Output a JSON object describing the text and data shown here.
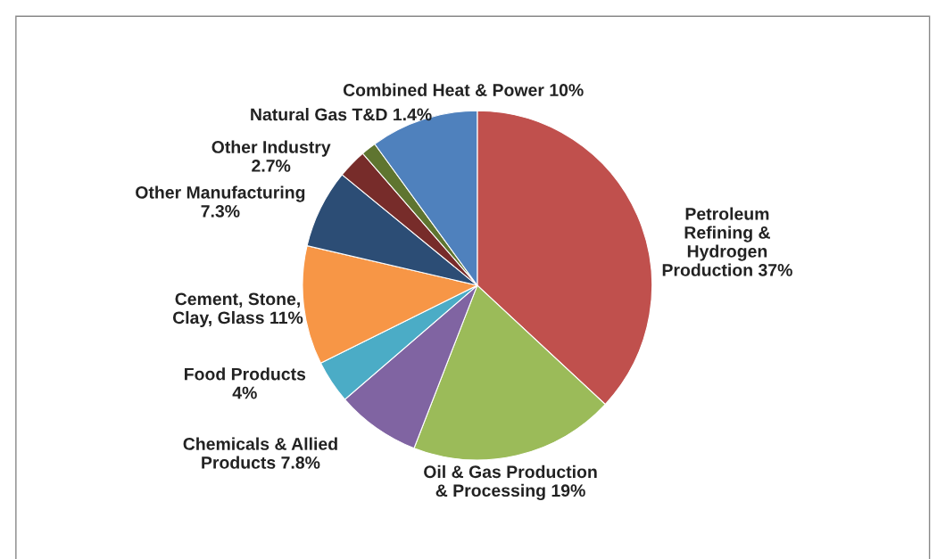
{
  "chart_data": {
    "type": "pie",
    "categories": [
      "Petroleum\nRefining &\nHydrogen\nProduction",
      "Oil & Gas Production\n& Processing",
      "Chemicals & Allied\nProducts",
      "Food Products",
      "Cement, Stone,\nClay, Glass",
      "Other Manufacturing",
      "Other Industry",
      "Natural Gas T&D",
      "Combined Heat & Power"
    ],
    "values": [
      37,
      19,
      7.8,
      4,
      11,
      7.3,
      2.7,
      1.4,
      10
    ],
    "value_labels": [
      "37%",
      "19%",
      "7.8%",
      "4%",
      "11%",
      "7.3%",
      "2.7%",
      "1.4%",
      "10%"
    ],
    "colors": [
      "#c0504d",
      "#9bbb59",
      "#8064a2",
      "#4bacc6",
      "#f79646",
      "#2c4d75",
      "#772c2a",
      "#5f7530",
      "#4f81bd"
    ],
    "legend": false
  }
}
